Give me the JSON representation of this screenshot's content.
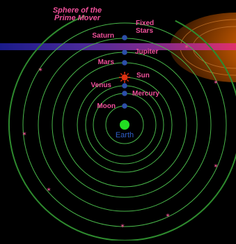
{
  "diagram": {
    "prime_mover_label": [
      "Sphere of the",
      "Prime Mover"
    ],
    "earth_label": "Earth",
    "bodies": [
      {
        "id": "moon",
        "label": "Moon"
      },
      {
        "id": "mercury",
        "label": "Mercury"
      },
      {
        "id": "venus",
        "label": "Venus"
      },
      {
        "id": "sun",
        "label": "Sun"
      },
      {
        "id": "mars",
        "label": "Mars"
      },
      {
        "id": "jupiter",
        "label": "Jupiter"
      },
      {
        "id": "saturn",
        "label": "Saturn"
      }
    ],
    "fixed_stars_label": [
      "Fixed",
      "Stars"
    ],
    "colors": {
      "background": "#000000",
      "orbit": "#49b84a",
      "prime_mover_orbit": "#2e8b2e",
      "planet": "#2d4fa8",
      "sun": "#e03010",
      "earth": "#22dd22",
      "label": "#f0509a",
      "earth_label": "#2f5fc8",
      "star": "#e0508a"
    }
  }
}
